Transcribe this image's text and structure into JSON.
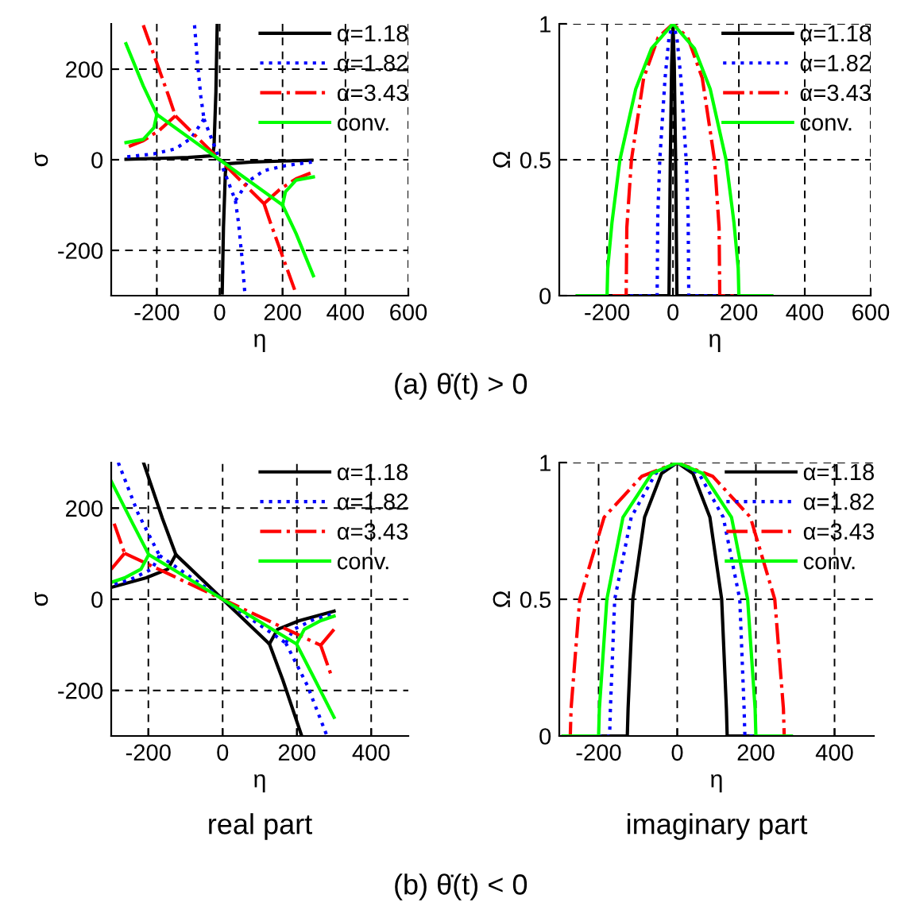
{
  "chart_data": [
    {
      "type": "line",
      "xlabel": "η",
      "ylabel": "σ",
      "xlim": [
        -345,
        600
      ],
      "xticks": [
        -200,
        0,
        200,
        400,
        600
      ],
      "ylim": [
        -300,
        300
      ],
      "yticks": [
        -200,
        0,
        200
      ],
      "grid": true,
      "legend": "top right",
      "annotations": [
        "(a) θ̇(t) > 0"
      ],
      "series": [
        {
          "name": "α=1.18",
          "color": "#000000",
          "line_style": "solid",
          "x": [
            -8,
            -12,
            -18,
            -22,
            null,
            -22,
            -100,
            -192,
            -298,
            null,
            -22,
            22,
            null,
            22,
            100,
            192,
            293,
            null,
            22,
            18,
            12,
            8
          ],
          "values": [
            297,
            150,
            30,
            9,
            null,
            9,
            5,
            3,
            1,
            null,
            9,
            -9,
            null,
            -9,
            -5,
            -3,
            -1,
            null,
            -9,
            -30,
            -150,
            -294
          ]
        },
        {
          "name": "α=1.82",
          "color": "#0000ff",
          "line_style": "dotted",
          "x": [
            -80,
            -70,
            -60,
            -50,
            null,
            -50,
            -90,
            -141,
            -209,
            -298,
            null,
            -50,
            0,
            50,
            null,
            50,
            90,
            141,
            209,
            293,
            null,
            50,
            60,
            70,
            80
          ],
          "values": [
            297,
            210,
            140,
            90,
            null,
            90,
            48,
            24,
            13,
            6,
            null,
            90,
            0,
            -90,
            null,
            -90,
            -48,
            -24,
            -13,
            -5,
            null,
            -90,
            -140,
            -210,
            -294
          ]
        },
        {
          "name": "α=3.43",
          "color": "#ff0000",
          "line_style": "dashdot",
          "x": [
            -243,
            -192,
            -162,
            -141,
            null,
            -141,
            -192,
            -243,
            -298,
            null,
            -141,
            0,
            141,
            null,
            141,
            192,
            243,
            298,
            null,
            141,
            162,
            192,
            242
          ],
          "values": [
            297,
            198,
            140,
            97,
            null,
            97,
            65,
            42,
            27,
            null,
            97,
            0,
            -97,
            null,
            -97,
            -65,
            -42,
            -27,
            null,
            -97,
            -140,
            -198,
            -294
          ]
        },
        {
          "name": "conv.",
          "color": "#00ff00",
          "line_style": "solid",
          "x": [
            -298,
            -243,
            -200,
            null,
            -200,
            -209,
            -243,
            -298,
            null,
            -200,
            0,
            200,
            null,
            200,
            209,
            243,
            298,
            null,
            200,
            243,
            298
          ],
          "values": [
            256,
            163,
            100,
            null,
            100,
            71,
            45,
            38,
            null,
            100,
            0,
            -100,
            null,
            -100,
            -71,
            -45,
            -38,
            null,
            -100,
            -163,
            -256
          ]
        }
      ]
    },
    {
      "type": "line",
      "xlabel": "η",
      "ylabel": "Ω",
      "xlim": [
        -345,
        600
      ],
      "xticks": [
        -200,
        0,
        200,
        400,
        600
      ],
      "ylim": [
        0,
        1
      ],
      "yticks": [
        0,
        0.5,
        1
      ],
      "grid": true,
      "legend": "top right",
      "series": [
        {
          "name": "α=1.18",
          "color": "#000000",
          "line_style": "solid",
          "x": [
            -290,
            -12,
            -8,
            -4,
            0,
            4,
            8,
            12,
            290
          ],
          "values": [
            0,
            0,
            0.5,
            0.85,
            1,
            0.85,
            0.5,
            0,
            0
          ]
        },
        {
          "name": "α=1.82",
          "color": "#0000ff",
          "line_style": "dotted",
          "x": [
            -290,
            -48,
            -46,
            -40,
            -24,
            -12,
            0,
            12,
            24,
            40,
            46,
            48,
            290
          ],
          "values": [
            0,
            0,
            0.3,
            0.5,
            0.8,
            0.95,
            1,
            0.95,
            0.8,
            0.5,
            0.3,
            0,
            0
          ]
        },
        {
          "name": "α=3.43",
          "color": "#ff0000",
          "line_style": "dashdot",
          "x": [
            -290,
            -142,
            -140,
            -126,
            -89,
            -45,
            0,
            45,
            89,
            126,
            140,
            142,
            290
          ],
          "values": [
            0,
            0,
            0.25,
            0.5,
            0.8,
            0.95,
            1,
            0.95,
            0.8,
            0.5,
            0.25,
            0,
            0
          ]
        },
        {
          "name": "conv.",
          "color": "#00ff00",
          "line_style": "solid",
          "x": [
            -290,
            -200,
            -198,
            -185,
            -161,
            -113,
            -65,
            0,
            65,
            113,
            161,
            185,
            198,
            200,
            300
          ],
          "values": [
            0,
            0,
            0.1,
            0.27,
            0.5,
            0.76,
            0.91,
            1,
            0.91,
            0.76,
            0.5,
            0.27,
            0.1,
            0,
            0
          ]
        }
      ]
    },
    {
      "type": "line",
      "xlabel": "η",
      "ylabel": "σ",
      "xlim": [
        -300,
        500
      ],
      "xticks": [
        -200,
        0,
        200,
        400
      ],
      "ylim": [
        -300,
        300
      ],
      "yticks": [
        -200,
        0,
        200
      ],
      "grid": true,
      "legend": "top right",
      "annotations": [
        "real part",
        "(b) θ̇(t) < 0"
      ],
      "series": [
        {
          "name": "α=1.18",
          "color": "#000000",
          "line_style": "solid",
          "x": [
            -213,
            -162,
            -126,
            null,
            -126,
            -148,
            -206,
            -300,
            null,
            -126,
            0,
            126,
            null,
            126,
            148,
            206,
            300,
            null,
            126,
            162,
            213
          ],
          "values": [
            300,
            177,
            98,
            null,
            98,
            66,
            47,
            26,
            null,
            98,
            0,
            -98,
            null,
            -98,
            -66,
            -47,
            -26,
            null,
            -98,
            -177,
            -300
          ]
        },
        {
          "name": "α=1.82",
          "color": "#0000ff",
          "line_style": "dotted",
          "x": [
            -281,
            -228,
            -170,
            null,
            -170,
            -191,
            -249,
            -300,
            null,
            -170,
            0,
            170,
            null,
            170,
            191,
            249,
            300,
            null,
            170,
            228,
            281
          ],
          "values": [
            300,
            189,
            96,
            null,
            96,
            66,
            43,
            31,
            null,
            96,
            0,
            -96,
            null,
            -96,
            -66,
            -43,
            -31,
            null,
            -96,
            -189,
            -300
          ]
        },
        {
          "name": "α=3.43",
          "color": "#ff0000",
          "line_style": "dashdot",
          "x": [
            -292,
            -264,
            null,
            -264,
            -300,
            null,
            -264,
            0,
            264,
            null,
            264,
            300,
            null,
            264,
            292
          ],
          "values": [
            166,
            101,
            null,
            101,
            66,
            null,
            101,
            0,
            -101,
            null,
            -101,
            -66,
            null,
            -101,
            -166
          ]
        },
        {
          "name": "conv.",
          "color": "#00ff00",
          "line_style": "solid",
          "x": [
            -300,
            -242,
            -199,
            null,
            -199,
            -220,
            -264,
            -300,
            null,
            -199,
            0,
            199,
            null,
            199,
            220,
            264,
            300,
            null,
            199,
            242,
            300
          ],
          "values": [
            259,
            166,
            98,
            null,
            98,
            66,
            47,
            37,
            null,
            98,
            0,
            -98,
            null,
            -98,
            -66,
            -47,
            -37,
            null,
            -98,
            -166,
            -259
          ]
        }
      ]
    },
    {
      "type": "line",
      "xlabel": "η",
      "ylabel": "Ω",
      "xlim": [
        -300,
        500
      ],
      "xticks": [
        -200,
        0,
        200,
        400
      ],
      "ylim": [
        0,
        1
      ],
      "yticks": [
        0,
        0.5,
        1
      ],
      "grid": true,
      "legend": "top right",
      "annotations": [
        "imaginary part"
      ],
      "series": [
        {
          "name": "α=1.18",
          "color": "#000000",
          "line_style": "solid",
          "x": [
            -290,
            -127,
            -125,
            -113,
            -83,
            -40,
            0,
            40,
            83,
            113,
            125,
            127,
            290
          ],
          "values": [
            0,
            0,
            0.1,
            0.5,
            0.8,
            0.96,
            1,
            0.96,
            0.8,
            0.5,
            0.1,
            0,
            0
          ]
        },
        {
          "name": "α=1.82",
          "color": "#0000ff",
          "line_style": "dotted",
          "x": [
            -290,
            -172,
            -170,
            -159,
            -117,
            -55,
            0,
            55,
            117,
            159,
            170,
            172,
            290
          ],
          "values": [
            0,
            0,
            0.1,
            0.5,
            0.8,
            0.96,
            1,
            0.96,
            0.8,
            0.5,
            0.1,
            0,
            0
          ]
        },
        {
          "name": "α=3.43",
          "color": "#ff0000",
          "line_style": "dashdot",
          "x": [
            -290,
            -272,
            -270,
            -248,
            -186,
            -90,
            0,
            90,
            186,
            248,
            270,
            272,
            290
          ],
          "values": [
            0,
            0,
            0.1,
            0.5,
            0.8,
            0.95,
            1,
            0.95,
            0.8,
            0.5,
            0.1,
            0,
            0
          ]
        },
        {
          "name": "conv.",
          "color": "#00ff00",
          "line_style": "solid",
          "x": [
            -290,
            -200,
            -198,
            -179,
            -138,
            -65,
            0,
            65,
            138,
            179,
            198,
            200,
            290
          ],
          "values": [
            0,
            0,
            0.1,
            0.5,
            0.8,
            0.96,
            1,
            0.96,
            0.8,
            0.5,
            0.1,
            0,
            0
          ]
        }
      ]
    }
  ]
}
